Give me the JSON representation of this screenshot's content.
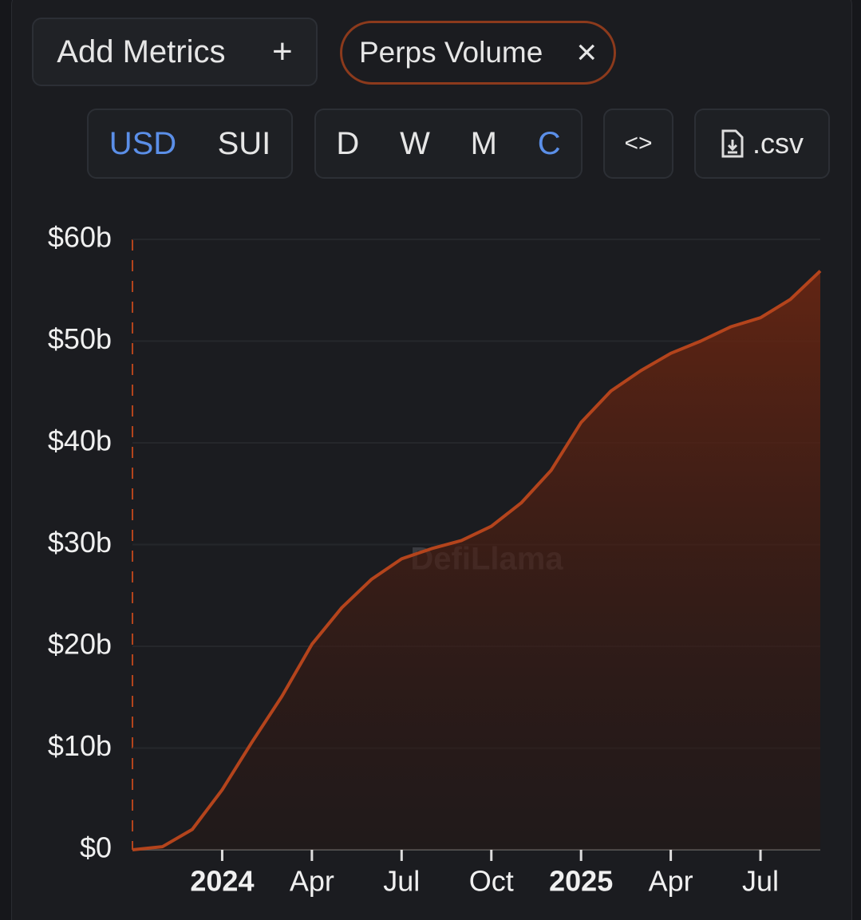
{
  "controls": {
    "add_metrics": "Add Metrics",
    "add_icon": "+",
    "metric": "Perps Volume",
    "remove_icon": "×",
    "currencies": [
      "USD",
      "SUI"
    ],
    "selected_currency": "USD",
    "periods": [
      "D",
      "W",
      "M",
      "C"
    ],
    "selected_period": "C",
    "embed": "<>",
    "csv": ".csv"
  },
  "chart_data": {
    "type": "area",
    "categories": [
      null,
      null,
      null,
      "2024",
      null,
      null,
      "Apr",
      null,
      null,
      "Jul",
      null,
      null,
      "Oct",
      null,
      null,
      "2025",
      null,
      null,
      "Apr",
      null,
      null,
      "Jul",
      null,
      null
    ],
    "series": [
      {
        "name": "Perps Volume",
        "color": "#b4441c",
        "values": [
          0,
          0.3,
          2,
          5.9,
          10.6,
          15.1,
          20.2,
          23.8,
          26.6,
          28.6,
          29.6,
          30.4,
          31.8,
          34.1,
          37.3,
          42,
          45.1,
          47.1,
          48.8,
          50,
          51.4,
          52.3,
          54.1,
          56.9
        ]
      }
    ],
    "ylim": [
      0,
      60
    ],
    "yticks": [
      {
        "value": 0,
        "label": "$0"
      },
      {
        "value": 10,
        "label": "$10b"
      },
      {
        "value": 20,
        "label": "$20b"
      },
      {
        "value": 30,
        "label": "$30b"
      },
      {
        "value": 40,
        "label": "$40b"
      },
      {
        "value": 50,
        "label": "$50b"
      },
      {
        "value": 60,
        "label": "$60b"
      }
    ],
    "grid": true,
    "watermark": "DefiLlama"
  }
}
